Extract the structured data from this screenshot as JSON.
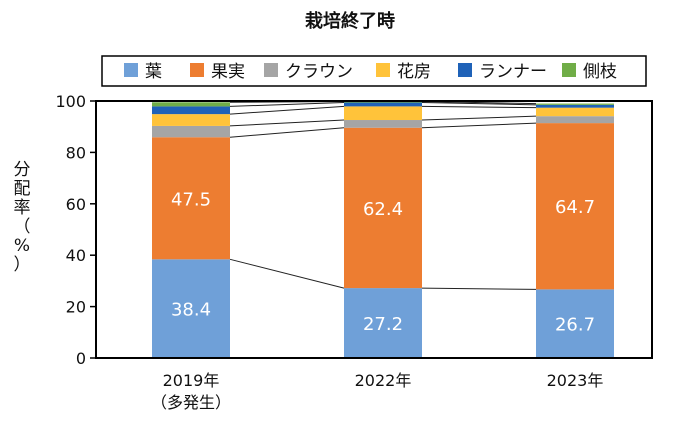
{
  "chart_data": {
    "type": "bar",
    "stacked": true,
    "title": "栽培終了時",
    "ylabel_chars": [
      "分",
      "配",
      "率",
      "（",
      "%",
      "）"
    ],
    "ylim": [
      0,
      100
    ],
    "yticks": [
      0,
      20,
      40,
      60,
      80,
      100
    ],
    "categories": [
      {
        "lines": [
          "2019年",
          "（多発生）"
        ]
      },
      {
        "lines": [
          "2022年"
        ]
      },
      {
        "lines": [
          "2023年"
        ]
      }
    ],
    "series": [
      {
        "name": "葉",
        "color": "#6FA0D8",
        "values": [
          38.4,
          27.2,
          26.7
        ],
        "labels": [
          "38.4",
          "27.2",
          "26.7"
        ]
      },
      {
        "name": "果実",
        "color": "#ED7D31",
        "values": [
          47.5,
          62.4,
          64.7
        ],
        "labels": [
          "47.5",
          "62.4",
          "64.7"
        ]
      },
      {
        "name": "クラウン",
        "color": "#A5A5A5",
        "values": [
          4.4,
          3.0,
          2.7
        ]
      },
      {
        "name": "花房",
        "color": "#FFC33A",
        "values": [
          4.6,
          5.3,
          3.3
        ]
      },
      {
        "name": "ランナー",
        "color": "#1F62B8",
        "values": [
          3.0,
          1.5,
          1.1
        ]
      },
      {
        "name": "側枝",
        "color": "#70AD47",
        "values": [
          1.6,
          0.4,
          0.5
        ]
      }
    ],
    "legend_position": "top",
    "connector_lines": true,
    "grid": false
  }
}
